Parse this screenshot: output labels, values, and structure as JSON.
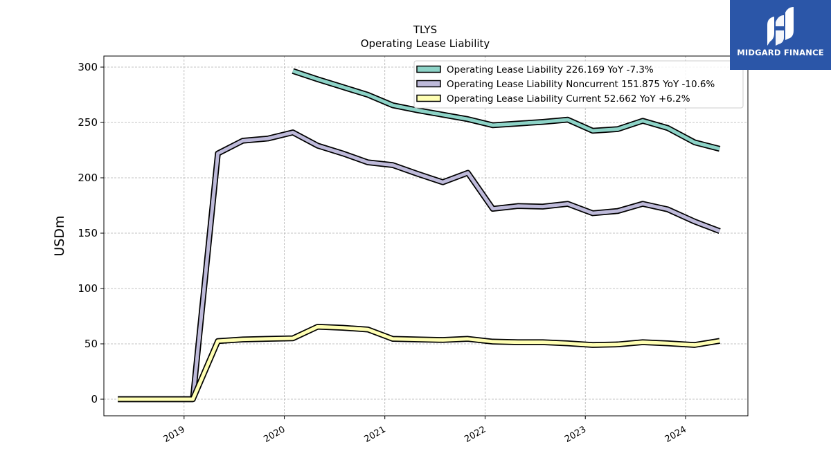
{
  "title": "TLYS",
  "subtitle": "Operating Lease Liability",
  "logo": {
    "text": "MIDGARD FINANCE",
    "bg": "#2b56a8"
  },
  "chart_data": {
    "type": "line",
    "title": "TLYS",
    "subtitle": "Operating Lease Liability",
    "xlabel": "",
    "ylabel": "USDm",
    "xlim": [
      "2018-03-15",
      "2024-08-15"
    ],
    "ylim": [
      -15,
      310
    ],
    "yticks": [
      0,
      50,
      100,
      150,
      200,
      250,
      300
    ],
    "xticks": [
      "2019",
      "2020",
      "2021",
      "2022",
      "2023",
      "2024"
    ],
    "grid": true,
    "legend_position": "top-right",
    "series": [
      {
        "name": "Operating Lease Liability",
        "legend_label": "Operating Lease Liability  226.169 YoY -7.3%",
        "color": "#8dd3c7",
        "points": [
          [
            "2020-02-01",
            296.5
          ],
          [
            "2020-05-02",
            289.0
          ],
          [
            "2020-08-01",
            282.0
          ],
          [
            "2020-10-31",
            275.0
          ],
          [
            "2021-01-30",
            265.5
          ],
          [
            "2021-05-01",
            261.0
          ],
          [
            "2021-07-31",
            257.0
          ],
          [
            "2021-10-30",
            253.0
          ],
          [
            "2022-01-29",
            247.5
          ],
          [
            "2022-04-30",
            249.0
          ],
          [
            "2022-07-30",
            250.5
          ],
          [
            "2022-10-29",
            252.5
          ],
          [
            "2023-01-28",
            242.5
          ],
          [
            "2023-04-29",
            244.0
          ],
          [
            "2023-07-29",
            251.5
          ],
          [
            "2023-10-28",
            245.0
          ],
          [
            "2024-02-03",
            232.0
          ],
          [
            "2024-05-04",
            226.2
          ]
        ]
      },
      {
        "name": "Operating Lease Liability Noncurrent",
        "legend_label": "Operating Lease Liability Noncurrent  151.875 YoY -10.6%",
        "color": "#bebada",
        "points": [
          [
            "2018-05-05",
            0
          ],
          [
            "2018-08-04",
            0
          ],
          [
            "2018-11-03",
            0
          ],
          [
            "2019-02-02",
            0
          ],
          [
            "2019-05-04",
            222.0
          ],
          [
            "2019-08-03",
            233.5
          ],
          [
            "2019-11-02",
            235.5
          ],
          [
            "2020-02-01",
            241.0
          ],
          [
            "2020-05-02",
            229.0
          ],
          [
            "2020-08-01",
            222.0
          ],
          [
            "2020-10-31",
            214.0
          ],
          [
            "2021-01-30",
            211.5
          ],
          [
            "2021-05-01",
            203.5
          ],
          [
            "2021-07-31",
            196.0
          ],
          [
            "2021-10-30",
            204.5
          ],
          [
            "2022-01-29",
            172.0
          ],
          [
            "2022-04-30",
            174.5
          ],
          [
            "2022-07-30",
            174.0
          ],
          [
            "2022-10-29",
            176.5
          ],
          [
            "2023-01-28",
            168.0
          ],
          [
            "2023-04-29",
            170.0
          ],
          [
            "2023-07-29",
            176.5
          ],
          [
            "2023-10-28",
            171.5
          ],
          [
            "2024-02-03",
            160.5
          ],
          [
            "2024-05-04",
            151.9
          ]
        ]
      },
      {
        "name": "Operating Lease Liability Current",
        "legend_label": "Operating Lease Liability Current  52.662 YoY +6.2%",
        "color": "#ffffb3",
        "points": [
          [
            "2018-05-05",
            0
          ],
          [
            "2018-08-04",
            0
          ],
          [
            "2018-11-03",
            0
          ],
          [
            "2019-02-02",
            0
          ],
          [
            "2019-05-04",
            52.5
          ],
          [
            "2019-08-03",
            54.0
          ],
          [
            "2019-11-02",
            54.5
          ],
          [
            "2020-02-01",
            55.0
          ],
          [
            "2020-05-02",
            65.5
          ],
          [
            "2020-08-01",
            64.5
          ],
          [
            "2020-10-31",
            63.0
          ],
          [
            "2021-01-30",
            54.5
          ],
          [
            "2021-05-01",
            54.0
          ],
          [
            "2021-07-31",
            53.5
          ],
          [
            "2021-10-30",
            54.5
          ],
          [
            "2022-01-29",
            52.0
          ],
          [
            "2022-04-30",
            51.5
          ],
          [
            "2022-07-30",
            51.5
          ],
          [
            "2022-10-29",
            50.5
          ],
          [
            "2023-01-28",
            49.0
          ],
          [
            "2023-04-29",
            49.5
          ],
          [
            "2023-07-29",
            51.5
          ],
          [
            "2023-10-28",
            50.5
          ],
          [
            "2024-02-03",
            49.0
          ],
          [
            "2024-05-04",
            52.7
          ]
        ]
      }
    ]
  }
}
